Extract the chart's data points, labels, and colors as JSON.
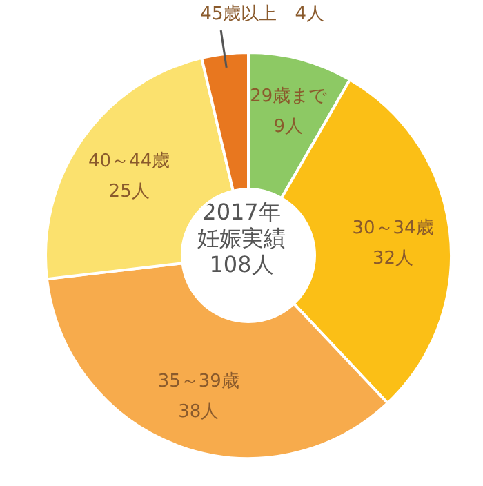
{
  "chart_data": {
    "type": "donut",
    "title": "2017年妊娠実績",
    "subtitle": "108人",
    "categories": [
      "29歳まで",
      "30～34歳",
      "35～39歳",
      "40～44歳",
      "45歳以上"
    ],
    "values": [
      9,
      32,
      38,
      25,
      4
    ],
    "colors": [
      "#8dc964",
      "#fbbf16",
      "#f7ab4c",
      "#fbe16e",
      "#e8771f"
    ],
    "value_labels": [
      "9人",
      "32人",
      "38人",
      "25人",
      "4人"
    ]
  }
}
